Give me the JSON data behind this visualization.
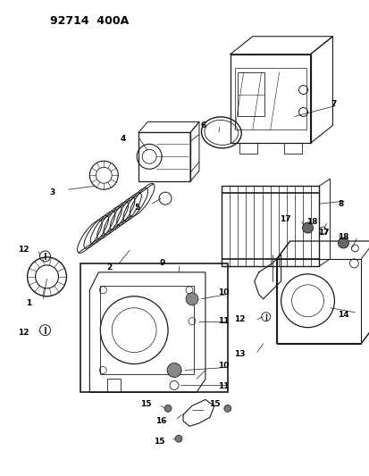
{
  "title": "92714  400A",
  "bg_color": "#ffffff",
  "lc": "#1a1a1a",
  "fig_width": 4.14,
  "fig_height": 5.33,
  "dpi": 100,
  "label_fs": 6.5,
  "title_fs": 9
}
